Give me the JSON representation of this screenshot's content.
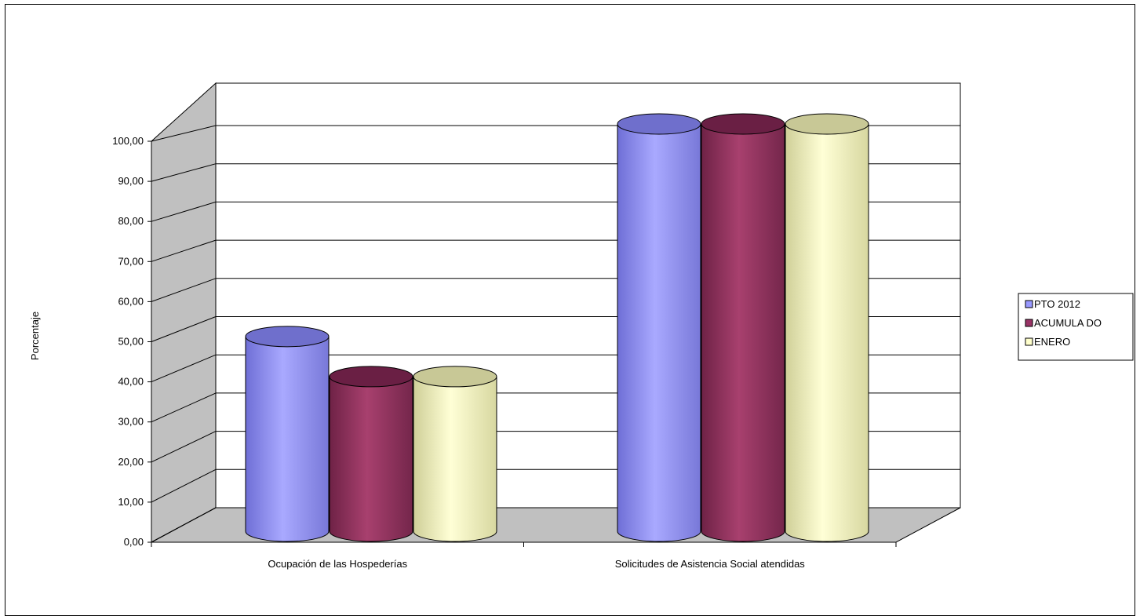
{
  "chart_data": {
    "type": "bar",
    "title": "",
    "xlabel": "",
    "ylabel": "Porcentaje",
    "ylim": [
      0,
      100
    ],
    "y_ticks": [
      "0,00",
      "10,00",
      "20,00",
      "30,00",
      "40,00",
      "50,00",
      "60,00",
      "70,00",
      "80,00",
      "90,00",
      "100,00"
    ],
    "categories": [
      "Ocupación de las Hospederías",
      "Solicitudes de Asistencia Social atendidas"
    ],
    "series": [
      {
        "name": "PTO  2012",
        "values": [
          47,
          100
        ],
        "color": "#9999ff"
      },
      {
        "name": "ACUMULA DO",
        "values": [
          37,
          100
        ],
        "color": "#993366"
      },
      {
        "name": "ENERO",
        "values": [
          37,
          100
        ],
        "color": "#ffffcc"
      }
    ],
    "grid": true,
    "legend_position": "right",
    "style": "3d-cylinder"
  }
}
